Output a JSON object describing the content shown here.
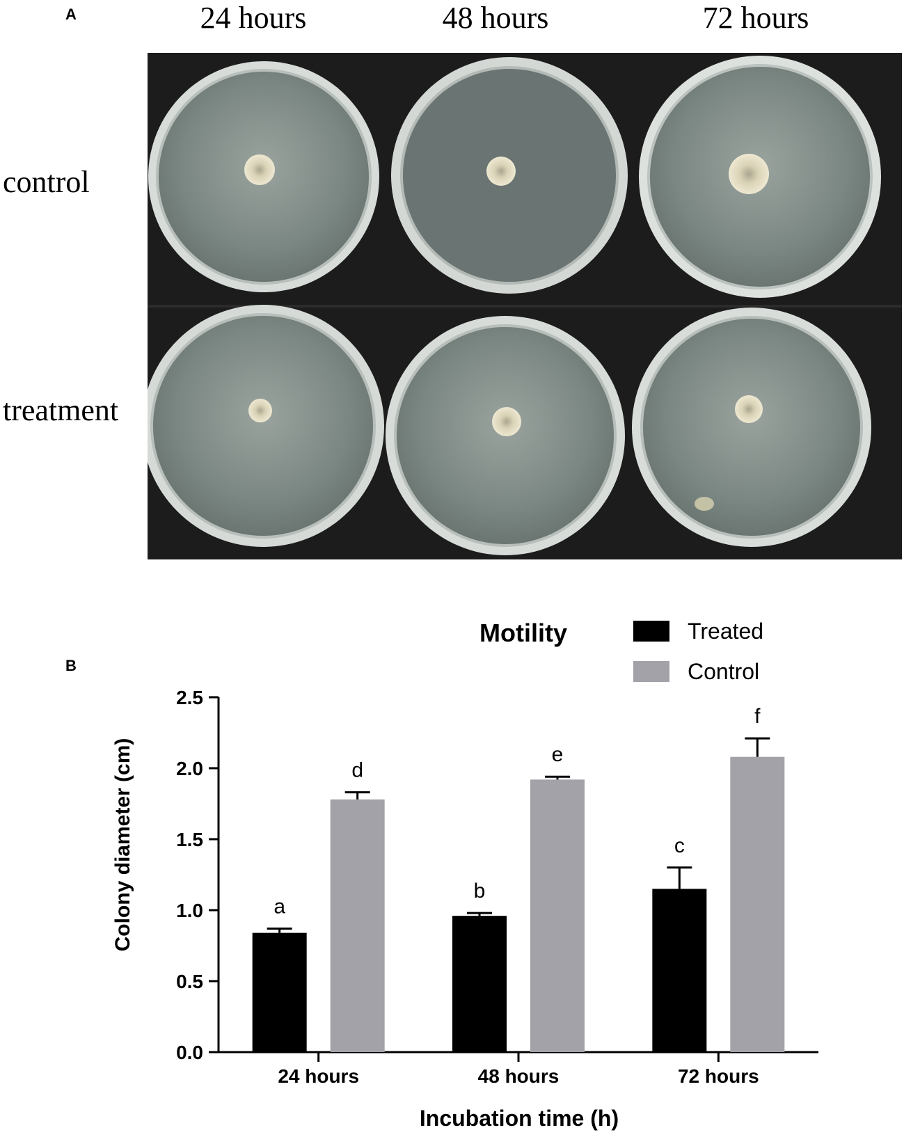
{
  "panel_a": {
    "letter": "A",
    "columns": [
      "24 hours",
      "48 hours",
      "72 hours"
    ],
    "rows": [
      "control",
      "treatment"
    ]
  },
  "panel_b": {
    "letter": "B"
  },
  "chart_data": {
    "type": "bar",
    "title": "Motility",
    "xlabel": "Incubation time (h)",
    "ylabel": "Colony diameter (cm)",
    "categories": [
      "24 hours",
      "48 hours",
      "72 hours"
    ],
    "ylim": [
      0,
      2.5
    ],
    "yticks": [
      "0.0",
      "0.5",
      "1.0",
      "1.5",
      "2.0",
      "2.5"
    ],
    "legend_position": "top-right",
    "series": [
      {
        "name": "Treated",
        "color": "#000000",
        "values": [
          0.84,
          0.96,
          1.15
        ],
        "errors": [
          0.03,
          0.02,
          0.15
        ],
        "letters": [
          "a",
          "b",
          "c"
        ]
      },
      {
        "name": "Control",
        "color": "#a2a2a8",
        "values": [
          1.78,
          1.92,
          2.08
        ],
        "errors": [
          0.05,
          0.02,
          0.13
        ],
        "letters": [
          "d",
          "e",
          "f"
        ]
      }
    ]
  }
}
